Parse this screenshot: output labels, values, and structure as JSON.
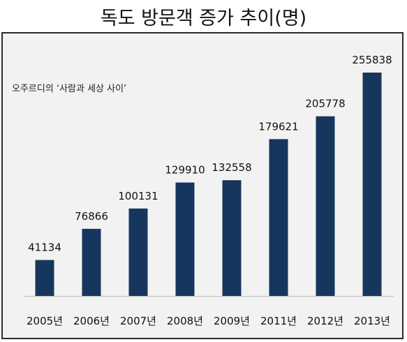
{
  "chart_data": {
    "type": "bar",
    "title": "독도 방문객 증가 추이(명)",
    "annotation": "오주르디의 ‘사람과 세상 사이’",
    "categories": [
      "2005년",
      "2006년",
      "2007년",
      "2008년",
      "2009년",
      "2011년",
      "2012년",
      "2013년"
    ],
    "values": [
      41134,
      76866,
      100131,
      129910,
      132558,
      179621,
      205778,
      255838
    ],
    "ylim": [
      0,
      255838
    ],
    "bar_color": "#17365d",
    "background_color": "#f2f2f2",
    "grid": false,
    "legend": "none"
  }
}
